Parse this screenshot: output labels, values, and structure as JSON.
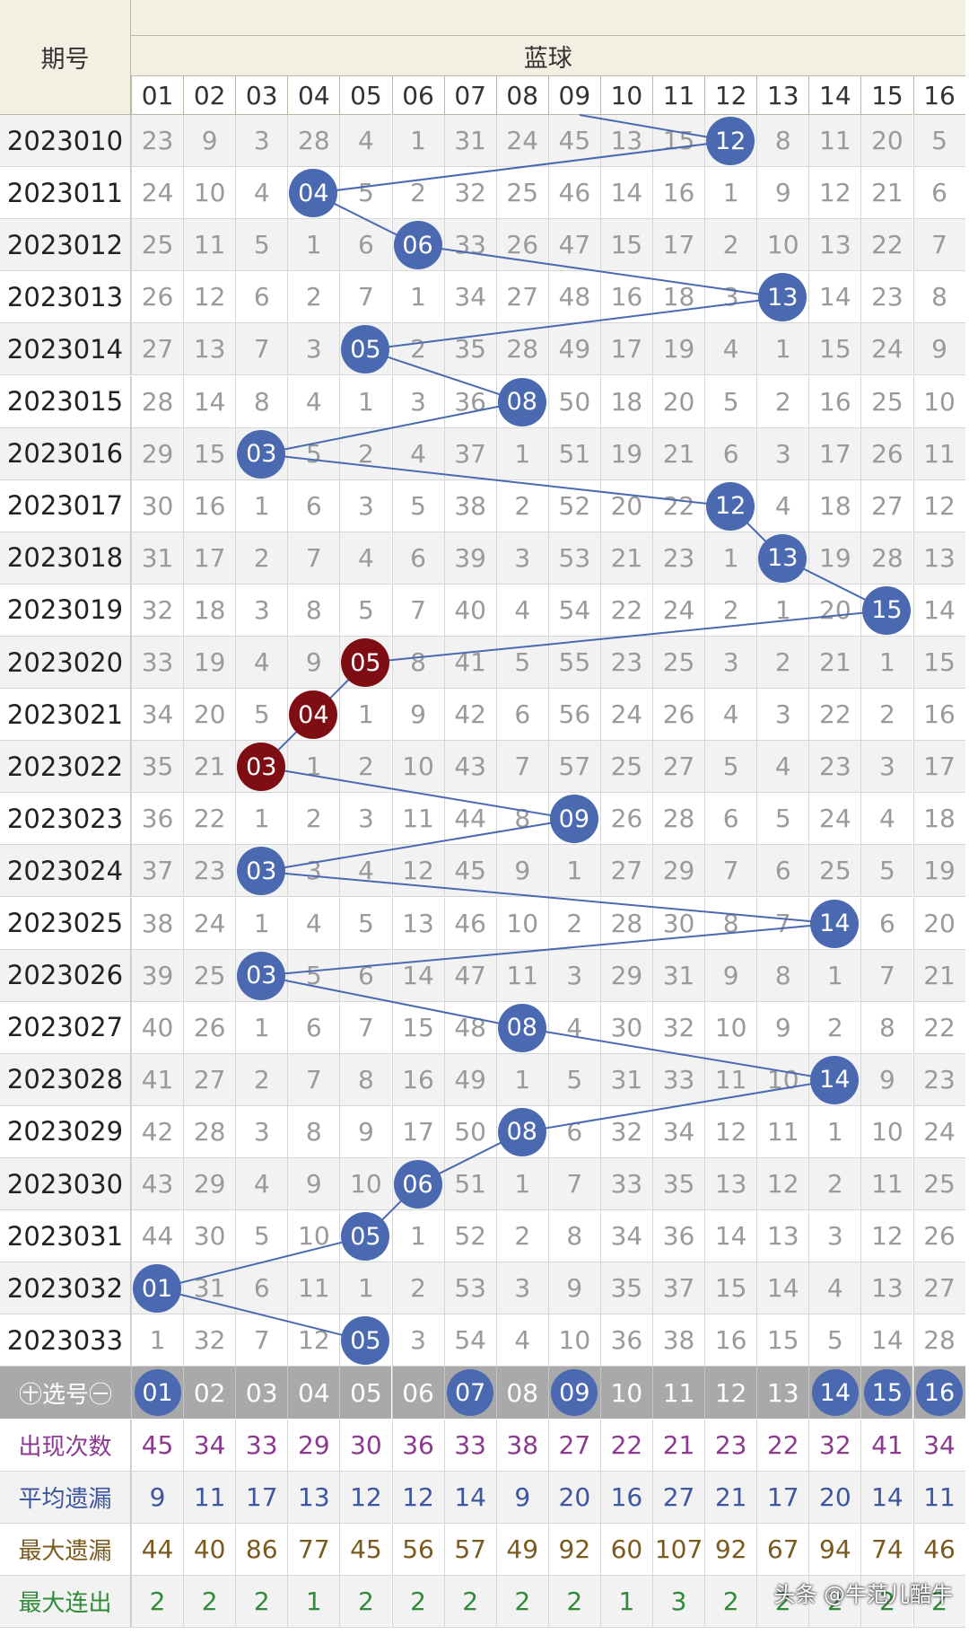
{
  "header": {
    "period_title": "期号",
    "blue_title": "蓝球",
    "columns": [
      "01",
      "02",
      "03",
      "04",
      "05",
      "06",
      "07",
      "08",
      "09",
      "10",
      "11",
      "12",
      "13",
      "14",
      "15",
      "16"
    ]
  },
  "rows": [
    {
      "period": "2023010",
      "values": [
        "23",
        "9",
        "3",
        "28",
        "4",
        "1",
        "31",
        "24",
        "45",
        "13",
        "15",
        "12",
        "8",
        "11",
        "20",
        "5"
      ],
      "hit": 12,
      "red": false
    },
    {
      "period": "2023011",
      "values": [
        "24",
        "10",
        "4",
        "04",
        "5",
        "2",
        "32",
        "25",
        "46",
        "14",
        "16",
        "1",
        "9",
        "12",
        "21",
        "6"
      ],
      "hit": 4,
      "red": false
    },
    {
      "period": "2023012",
      "values": [
        "25",
        "11",
        "5",
        "1",
        "6",
        "06",
        "33",
        "26",
        "47",
        "15",
        "17",
        "2",
        "10",
        "13",
        "22",
        "7"
      ],
      "hit": 6,
      "red": false
    },
    {
      "period": "2023013",
      "values": [
        "26",
        "12",
        "6",
        "2",
        "7",
        "1",
        "34",
        "27",
        "48",
        "16",
        "18",
        "3",
        "13",
        "14",
        "23",
        "8"
      ],
      "hit": 13,
      "red": false
    },
    {
      "period": "2023014",
      "values": [
        "27",
        "13",
        "7",
        "3",
        "05",
        "2",
        "35",
        "28",
        "49",
        "17",
        "19",
        "4",
        "1",
        "15",
        "24",
        "9"
      ],
      "hit": 5,
      "red": false
    },
    {
      "period": "2023015",
      "values": [
        "28",
        "14",
        "8",
        "4",
        "1",
        "3",
        "36",
        "08",
        "50",
        "18",
        "20",
        "5",
        "2",
        "16",
        "25",
        "10"
      ],
      "hit": 8,
      "red": false
    },
    {
      "period": "2023016",
      "values": [
        "29",
        "15",
        "03",
        "5",
        "2",
        "4",
        "37",
        "1",
        "51",
        "19",
        "21",
        "6",
        "3",
        "17",
        "26",
        "11"
      ],
      "hit": 3,
      "red": false
    },
    {
      "period": "2023017",
      "values": [
        "30",
        "16",
        "1",
        "6",
        "3",
        "5",
        "38",
        "2",
        "52",
        "20",
        "22",
        "12",
        "4",
        "18",
        "27",
        "12"
      ],
      "hit": 12,
      "red": false
    },
    {
      "period": "2023018",
      "values": [
        "31",
        "17",
        "2",
        "7",
        "4",
        "6",
        "39",
        "3",
        "53",
        "21",
        "23",
        "1",
        "13",
        "19",
        "28",
        "13"
      ],
      "hit": 13,
      "red": false
    },
    {
      "period": "2023019",
      "values": [
        "32",
        "18",
        "3",
        "8",
        "5",
        "7",
        "40",
        "4",
        "54",
        "22",
        "24",
        "2",
        "1",
        "20",
        "15",
        "14"
      ],
      "hit": 15,
      "red": false
    },
    {
      "period": "2023020",
      "values": [
        "33",
        "19",
        "4",
        "9",
        "05",
        "8",
        "41",
        "5",
        "55",
        "23",
        "25",
        "3",
        "2",
        "21",
        "1",
        "15"
      ],
      "hit": 5,
      "red": true
    },
    {
      "period": "2023021",
      "values": [
        "34",
        "20",
        "5",
        "04",
        "1",
        "9",
        "42",
        "6",
        "56",
        "24",
        "26",
        "4",
        "3",
        "22",
        "2",
        "16"
      ],
      "hit": 4,
      "red": true
    },
    {
      "period": "2023022",
      "values": [
        "35",
        "21",
        "03",
        "1",
        "2",
        "10",
        "43",
        "7",
        "57",
        "25",
        "27",
        "5",
        "4",
        "23",
        "3",
        "17"
      ],
      "hit": 3,
      "red": true
    },
    {
      "period": "2023023",
      "values": [
        "36",
        "22",
        "1",
        "2",
        "3",
        "11",
        "44",
        "8",
        "09",
        "26",
        "28",
        "6",
        "5",
        "24",
        "4",
        "18"
      ],
      "hit": 9,
      "red": false
    },
    {
      "period": "2023024",
      "values": [
        "37",
        "23",
        "03",
        "3",
        "4",
        "12",
        "45",
        "9",
        "1",
        "27",
        "29",
        "7",
        "6",
        "25",
        "5",
        "19"
      ],
      "hit": 3,
      "red": false
    },
    {
      "period": "2023025",
      "values": [
        "38",
        "24",
        "1",
        "4",
        "5",
        "13",
        "46",
        "10",
        "2",
        "28",
        "30",
        "8",
        "7",
        "14",
        "6",
        "20"
      ],
      "hit": 14,
      "red": false
    },
    {
      "period": "2023026",
      "values": [
        "39",
        "25",
        "03",
        "5",
        "6",
        "14",
        "47",
        "11",
        "3",
        "29",
        "31",
        "9",
        "8",
        "1",
        "7",
        "21"
      ],
      "hit": 3,
      "red": false
    },
    {
      "period": "2023027",
      "values": [
        "40",
        "26",
        "1",
        "6",
        "7",
        "15",
        "48",
        "08",
        "4",
        "30",
        "32",
        "10",
        "9",
        "2",
        "8",
        "22"
      ],
      "hit": 8,
      "red": false
    },
    {
      "period": "2023028",
      "values": [
        "41",
        "27",
        "2",
        "7",
        "8",
        "16",
        "49",
        "1",
        "5",
        "31",
        "33",
        "11",
        "10",
        "14",
        "9",
        "23"
      ],
      "hit": 14,
      "red": false
    },
    {
      "period": "2023029",
      "values": [
        "42",
        "28",
        "3",
        "8",
        "9",
        "17",
        "50",
        "08",
        "6",
        "32",
        "34",
        "12",
        "11",
        "1",
        "10",
        "24"
      ],
      "hit": 8,
      "red": false
    },
    {
      "period": "2023030",
      "values": [
        "43",
        "29",
        "4",
        "9",
        "10",
        "06",
        "51",
        "1",
        "7",
        "33",
        "35",
        "13",
        "12",
        "2",
        "11",
        "25"
      ],
      "hit": 6,
      "red": false
    },
    {
      "period": "2023031",
      "values": [
        "44",
        "30",
        "5",
        "10",
        "05",
        "1",
        "52",
        "2",
        "8",
        "34",
        "36",
        "14",
        "13",
        "3",
        "12",
        "26"
      ],
      "hit": 5,
      "red": false
    },
    {
      "period": "2023032",
      "values": [
        "01",
        "31",
        "6",
        "11",
        "1",
        "2",
        "53",
        "3",
        "9",
        "35",
        "37",
        "15",
        "14",
        "4",
        "13",
        "27"
      ],
      "hit": 1,
      "red": false
    },
    {
      "period": "2023033",
      "values": [
        "1",
        "32",
        "7",
        "12",
        "05",
        "3",
        "54",
        "4",
        "10",
        "36",
        "38",
        "16",
        "15",
        "5",
        "14",
        "28"
      ],
      "hit": 5,
      "red": false
    }
  ],
  "selector": {
    "label": "㊉选号㊀",
    "numbers": [
      "01",
      "02",
      "03",
      "04",
      "05",
      "06",
      "07",
      "08",
      "09",
      "10",
      "11",
      "12",
      "13",
      "14",
      "15",
      "16"
    ],
    "selected": [
      1,
      7,
      9,
      14,
      15,
      16
    ]
  },
  "stats": [
    {
      "label": "出现次数",
      "color": "#8b3a8f",
      "values": [
        "45",
        "34",
        "33",
        "29",
        "30",
        "36",
        "33",
        "38",
        "27",
        "22",
        "21",
        "23",
        "22",
        "32",
        "41",
        "34"
      ]
    },
    {
      "label": "平均遗漏",
      "color": "#3d56a0",
      "values": [
        "9",
        "11",
        "17",
        "13",
        "12",
        "12",
        "14",
        "9",
        "20",
        "16",
        "27",
        "21",
        "17",
        "20",
        "14",
        "11"
      ]
    },
    {
      "label": "最大遗漏",
      "color": "#7a5a1e",
      "values": [
        "44",
        "40",
        "86",
        "77",
        "45",
        "56",
        "57",
        "49",
        "92",
        "60",
        "107",
        "92",
        "67",
        "94",
        "74",
        "46"
      ]
    },
    {
      "label": "最大连出",
      "color": "#2f8a3a",
      "values": [
        "2",
        "2",
        "2",
        "1",
        "2",
        "2",
        "2",
        "2",
        "2",
        "1",
        "3",
        "2",
        "2",
        "2",
        "2",
        "2"
      ]
    }
  ],
  "watermark": "头条 @牛范儿酷牛",
  "colors": {
    "ball_blue": "#4a69b1",
    "ball_red": "#7f0e14",
    "line": "#4a69b1",
    "header_bg": "#f3efe2"
  }
}
